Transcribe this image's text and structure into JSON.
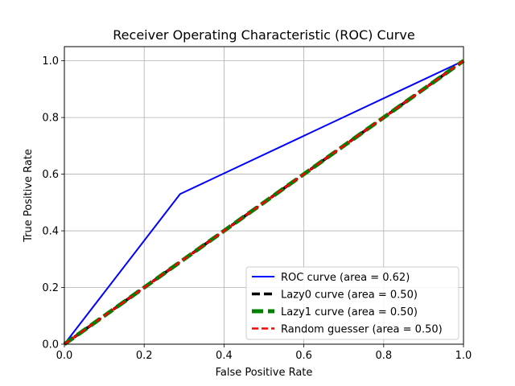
{
  "chart_data": {
    "type": "line",
    "title": "Receiver Operating Characteristic (ROC) Curve",
    "xlabel": "False Positive Rate",
    "ylabel": "True Positive Rate",
    "xlim": [
      0.0,
      1.0
    ],
    "ylim": [
      0.0,
      1.05
    ],
    "xticks": [
      "0.0",
      "0.2",
      "0.4",
      "0.6",
      "0.8",
      "1.0"
    ],
    "yticks": [
      "0.0",
      "0.2",
      "0.4",
      "0.6",
      "0.8",
      "1.0"
    ],
    "grid": true,
    "legend_position": "lower-right",
    "series": [
      {
        "name": "ROC curve (area = 0.62)",
        "color": "#0000ff",
        "style": "solid",
        "width": "thin",
        "x": [
          0.0,
          0.29,
          1.0
        ],
        "y": [
          0.0,
          0.53,
          1.0
        ]
      },
      {
        "name": "Lazy0 curve (area = 0.50)",
        "color": "#000000",
        "style": "dashed",
        "width": "thick",
        "x": [
          0.0,
          1.0
        ],
        "y": [
          0.0,
          1.0
        ]
      },
      {
        "name": "Lazy1 curve (area = 0.50)",
        "color": "#008000",
        "style": "dashed",
        "width": "extra-thick",
        "x": [
          0.0,
          1.0
        ],
        "y": [
          0.0,
          1.0
        ]
      },
      {
        "name": "Random guesser (area = 0.50)",
        "color": "#ff0000",
        "style": "dashed",
        "width": "medium",
        "x": [
          0.0,
          1.0
        ],
        "y": [
          0.0,
          1.0
        ]
      }
    ]
  }
}
